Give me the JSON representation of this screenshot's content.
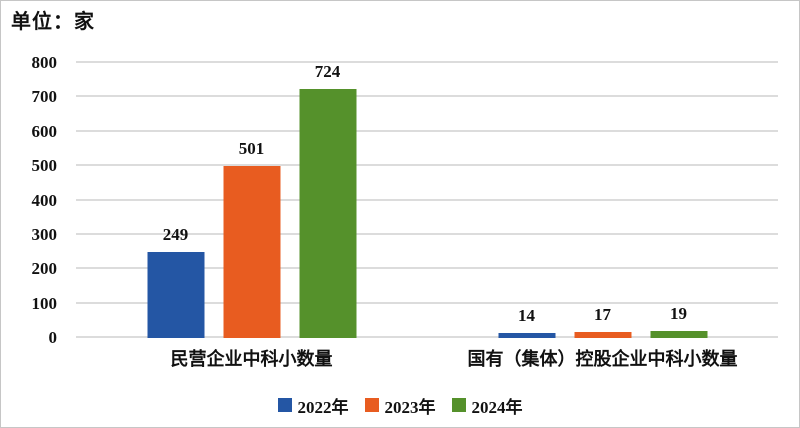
{
  "title": "单位：家",
  "chart_data": {
    "type": "bar",
    "title": "单位：家",
    "categories": [
      "民营企业中科小数量",
      "国有（集体）控股企业中科小数量"
    ],
    "series": [
      {
        "name": "2022年",
        "color": "#2456A4",
        "values": [
          249,
          14
        ]
      },
      {
        "name": "2023年",
        "color": "#E85C20",
        "values": [
          501,
          17
        ]
      },
      {
        "name": "2024年",
        "color": "#55912B",
        "values": [
          724,
          19
        ]
      }
    ],
    "ylim": [
      0,
      800
    ],
    "ytick_step": 100,
    "ytick_labels": [
      "0",
      "100",
      "200",
      "300",
      "400",
      "500",
      "600",
      "700",
      "800"
    ],
    "grid": true,
    "legend_position": "bottom",
    "value_labels_shown": true
  },
  "colors": {
    "gridline": "#dcdcdc",
    "text": "#111111",
    "frame_border": "#c6c6c6",
    "background": "#ffffff"
  }
}
